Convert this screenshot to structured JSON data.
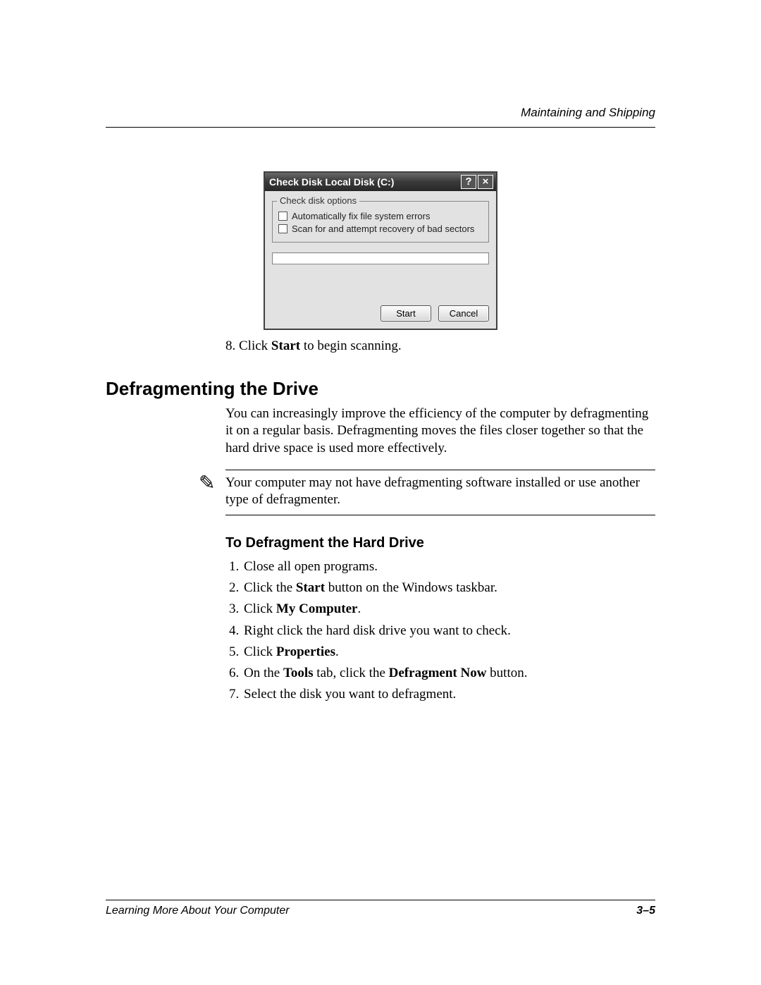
{
  "header": {
    "section_title": "Maintaining and Shipping"
  },
  "dialog": {
    "title": "Check Disk Local Disk (C:)",
    "help_glyph": "?",
    "close_glyph": "×",
    "group_legend": "Check disk options",
    "option1": "Automatically fix file system errors",
    "option2": "Scan for and attempt recovery of bad sectors",
    "start_label": "Start",
    "cancel_label": "Cancel"
  },
  "step8": {
    "num": "8.",
    "pre": " Click ",
    "bold": "Start",
    "post": " to begin scanning."
  },
  "section": {
    "heading": "Defragmenting the Drive",
    "para": "You can increasingly improve the efficiency of the computer by defragmenting it on a regular basis. Defragmenting moves the files closer together so that the hard drive space is used more effectively.",
    "note_glyph": "✎",
    "note": "Your computer may not have defragmenting software installed or use another type of defragmenter.",
    "subheading": "To Defragment the Hard Drive"
  },
  "steps": {
    "s1": "Close all open programs.",
    "s2_pre": "Click the ",
    "s2_b": "Start",
    "s2_post": " button on the Windows taskbar.",
    "s3_pre": "Click ",
    "s3_b": "My Computer",
    "s3_post": ".",
    "s4": "Right click the hard disk drive you want to check.",
    "s5_pre": "Click ",
    "s5_b": "Properties",
    "s5_post": ".",
    "s6_pre": "On the ",
    "s6_b1": "Tools",
    "s6_mid": " tab, click the ",
    "s6_b2": "Defragment Now",
    "s6_post": " button.",
    "s7": "Select the disk you want to defragment."
  },
  "footer": {
    "book_title": "Learning More About Your Computer",
    "page_num": "3–5"
  },
  "colors": {
    "rule": "#000000",
    "dialog_bg": "#e2e2e2",
    "titlebar_top": "#6a6a6a",
    "titlebar_bottom": "#2a2a2a"
  }
}
